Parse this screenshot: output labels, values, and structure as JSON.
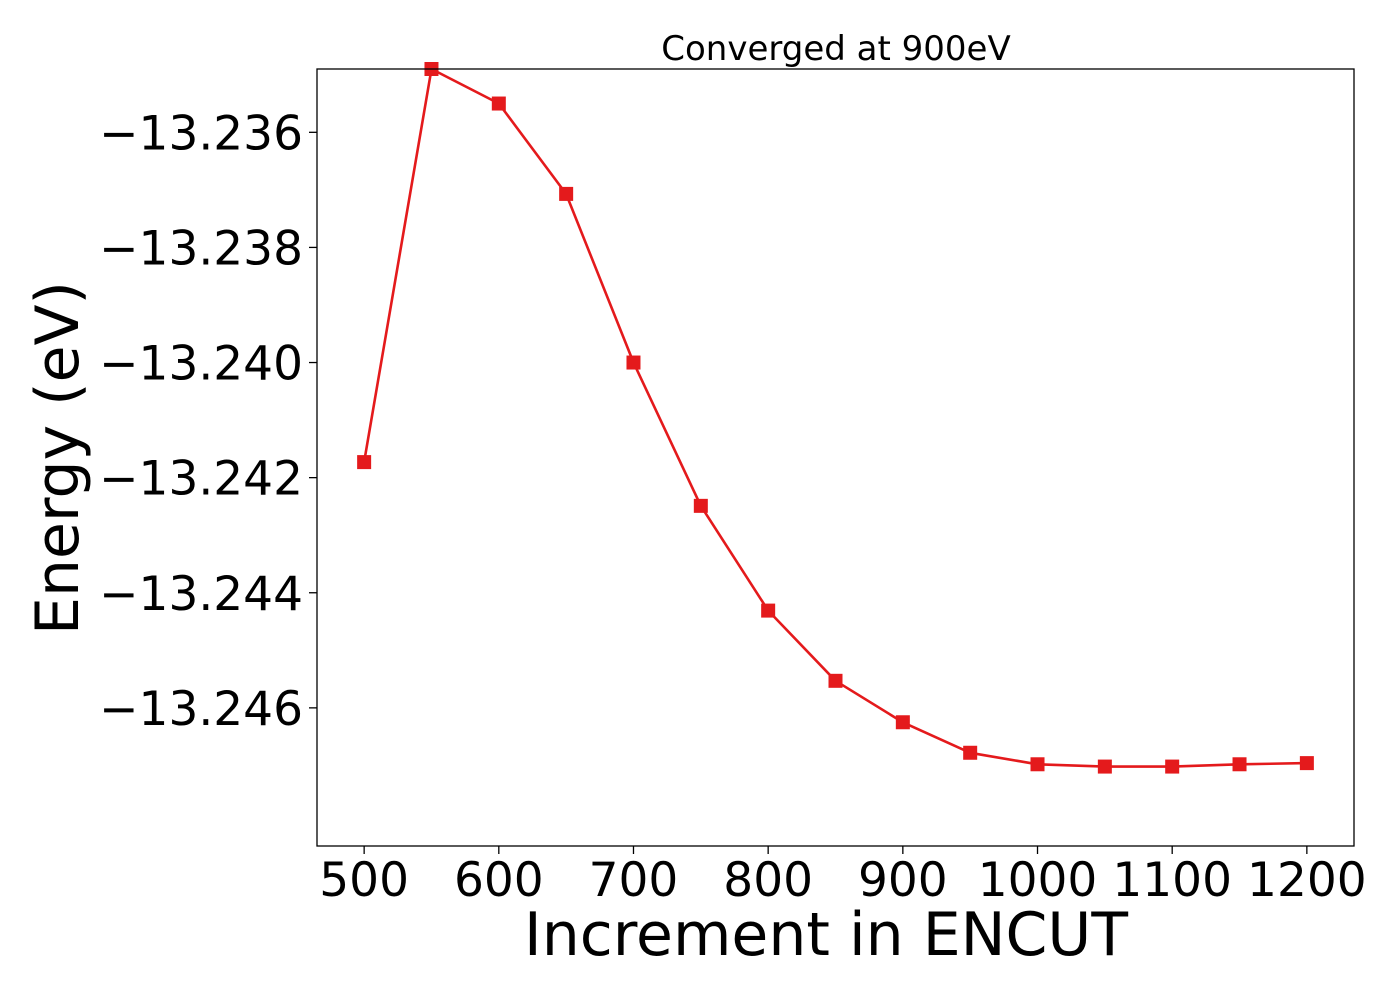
{
  "chart_data": {
    "type": "line",
    "title": "Converged at 900eV",
    "xlabel": "Increment in ENCUT",
    "ylabel": "Energy (eV)",
    "xlim": [
      465,
      1235
    ],
    "ylim": [
      -13.2484,
      -13.2349
    ],
    "xticks": [
      500,
      600,
      700,
      800,
      900,
      1000,
      1100,
      1200
    ],
    "yticks": [
      -13.246,
      -13.244,
      -13.242,
      -13.24,
      -13.238,
      -13.236
    ],
    "ytick_labels": [
      "−13.246",
      "−13.244",
      "−13.242",
      "−13.240",
      "−13.238",
      "−13.236"
    ],
    "grid": false,
    "series": [
      {
        "color": "#e41a1c",
        "marker": "square",
        "x": [
          500,
          550,
          600,
          650,
          700,
          750,
          800,
          850,
          900,
          950,
          1000,
          1050,
          1100,
          1150,
          1200
        ],
        "y": [
          -13.24173,
          -13.2349,
          -13.2355,
          -13.23707,
          -13.24,
          -13.24249,
          -13.24431,
          -13.24553,
          -13.24625,
          -13.24678,
          -13.24698,
          -13.24702,
          -13.24702,
          -13.24698,
          -13.24696
        ]
      }
    ]
  }
}
